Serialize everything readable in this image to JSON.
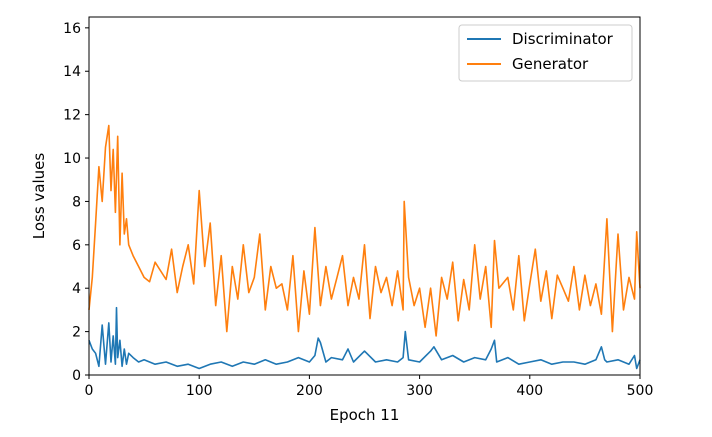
{
  "chart_data": {
    "type": "line",
    "title": "",
    "xlabel": "Epoch 11",
    "ylabel": "Loss values",
    "xlim": [
      0,
      500
    ],
    "ylim": [
      0,
      16.5
    ],
    "xticks": [
      0,
      100,
      200,
      300,
      400,
      500
    ],
    "yticks": [
      0,
      2,
      4,
      6,
      8,
      10,
      12,
      14,
      16
    ],
    "grid": false,
    "legend_position": "top-right",
    "series": [
      {
        "name": "Discriminator",
        "color": "#1f77b4",
        "x": [
          0,
          3,
          6,
          9,
          12,
          15,
          18,
          20,
          22,
          24,
          25,
          26,
          28,
          30,
          32,
          34,
          36,
          40,
          45,
          50,
          60,
          70,
          80,
          90,
          100,
          110,
          120,
          130,
          140,
          150,
          160,
          170,
          180,
          190,
          200,
          205,
          208,
          210,
          215,
          220,
          230,
          235,
          240,
          250,
          260,
          270,
          280,
          285,
          287,
          290,
          300,
          310,
          313,
          320,
          330,
          340,
          350,
          360,
          365,
          368,
          370,
          380,
          390,
          400,
          410,
          420,
          430,
          440,
          450,
          460,
          465,
          468,
          470,
          480,
          490,
          495,
          497,
          500
        ],
        "y": [
          1.6,
          1.2,
          1.0,
          0.4,
          2.3,
          0.5,
          2.4,
          0.6,
          1.8,
          0.5,
          3.1,
          0.8,
          1.6,
          0.4,
          1.2,
          0.5,
          1.0,
          0.8,
          0.6,
          0.7,
          0.5,
          0.6,
          0.4,
          0.5,
          0.3,
          0.5,
          0.6,
          0.4,
          0.6,
          0.5,
          0.7,
          0.5,
          0.6,
          0.8,
          0.6,
          0.9,
          1.7,
          1.5,
          0.6,
          0.8,
          0.7,
          1.2,
          0.6,
          1.1,
          0.6,
          0.7,
          0.6,
          0.8,
          2.0,
          0.7,
          0.6,
          1.1,
          1.3,
          0.7,
          0.9,
          0.6,
          0.8,
          0.7,
          1.2,
          1.6,
          0.6,
          0.8,
          0.5,
          0.6,
          0.7,
          0.5,
          0.6,
          0.6,
          0.5,
          0.7,
          1.3,
          0.7,
          0.6,
          0.7,
          0.5,
          0.9,
          0.3,
          0.7
        ]
      },
      {
        "name": "Generator",
        "color": "#ff7f0e",
        "x": [
          0,
          3,
          6,
          9,
          12,
          15,
          18,
          20,
          22,
          24,
          26,
          28,
          30,
          32,
          34,
          36,
          40,
          45,
          50,
          55,
          60,
          70,
          75,
          80,
          85,
          90,
          95,
          100,
          105,
          110,
          115,
          120,
          125,
          130,
          135,
          140,
          145,
          150,
          155,
          160,
          165,
          170,
          175,
          180,
          185,
          190,
          195,
          200,
          205,
          210,
          215,
          220,
          225,
          230,
          235,
          240,
          245,
          250,
          255,
          260,
          265,
          270,
          275,
          280,
          285,
          286,
          290,
          295,
          300,
          305,
          310,
          315,
          320,
          325,
          330,
          335,
          340,
          345,
          350,
          355,
          360,
          365,
          368,
          372,
          380,
          385,
          390,
          395,
          400,
          405,
          410,
          415,
          420,
          425,
          430,
          435,
          440,
          445,
          450,
          455,
          460,
          465,
          470,
          475,
          480,
          485,
          490,
          495,
          497,
          500
        ],
        "y": [
          3.0,
          4.5,
          7.0,
          9.6,
          8.0,
          10.5,
          11.5,
          8.5,
          10.4,
          7.5,
          11.0,
          6.0,
          9.3,
          6.5,
          7.2,
          6.0,
          5.5,
          5.0,
          4.5,
          4.3,
          5.2,
          4.4,
          5.8,
          3.8,
          5.0,
          6.0,
          4.2,
          8.5,
          5.0,
          7.0,
          3.2,
          5.5,
          2.0,
          5.0,
          3.5,
          6.0,
          3.8,
          4.5,
          6.5,
          3.0,
          5.0,
          4.0,
          4.2,
          3.0,
          5.5,
          2.0,
          4.8,
          2.8,
          6.8,
          3.2,
          5.0,
          3.5,
          4.5,
          5.5,
          3.2,
          4.5,
          3.5,
          6.0,
          2.6,
          5.0,
          3.8,
          4.5,
          3.2,
          4.8,
          3.0,
          8.0,
          4.5,
          3.2,
          4.0,
          2.2,
          4.0,
          1.8,
          4.5,
          3.5,
          5.2,
          2.5,
          4.4,
          3.0,
          6.0,
          3.5,
          5.0,
          2.2,
          6.2,
          4.0,
          4.5,
          3.0,
          5.5,
          2.5,
          4.2,
          5.8,
          3.4,
          4.8,
          2.6,
          4.6,
          4.0,
          3.4,
          5.0,
          3.0,
          4.6,
          3.2,
          4.2,
          2.8,
          7.2,
          2.0,
          6.5,
          3.0,
          4.5,
          3.5,
          6.6,
          4.0
        ]
      }
    ]
  }
}
